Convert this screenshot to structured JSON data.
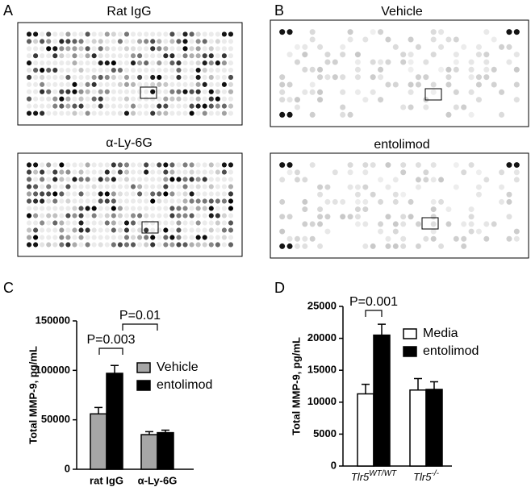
{
  "panels": {
    "A": {
      "label": "A",
      "titles": [
        "Rat IgG",
        "α-Ly-6G"
      ]
    },
    "B": {
      "label": "B",
      "titles": [
        "Vehicle",
        "entolimod"
      ]
    }
  },
  "chart_data": [
    {
      "type": "bar",
      "panel_label": "C",
      "ylabel": "Total MMP-9, pg/mL",
      "categories": [
        "rat IgG",
        "α-Ly-6G"
      ],
      "series": [
        {
          "name": "Vehicle",
          "color": "#a6a6a6",
          "values": [
            56000,
            35000
          ],
          "errors": [
            6500,
            3000
          ]
        },
        {
          "name": "entolimod",
          "color": "#000000",
          "values": [
            97000,
            37000
          ],
          "errors": [
            8000,
            2500
          ]
        }
      ],
      "ylim": [
        0,
        150000
      ],
      "yticks": [
        0,
        50000,
        100000,
        150000
      ],
      "annotations": [
        "P=0.003",
        "P=0.01"
      ]
    },
    {
      "type": "bar",
      "panel_label": "D",
      "ylabel": "Total MMP-9, pg/mL",
      "categories": [
        "Tlr5",
        "Tlr5"
      ],
      "category_superscripts": [
        "WT/WT",
        "-/-"
      ],
      "series": [
        {
          "name": "Media",
          "color": "#ffffff",
          "values": [
            11300,
            11900
          ],
          "errors": [
            1500,
            1800
          ]
        },
        {
          "name": "entolimod",
          "color": "#000000",
          "values": [
            20500,
            12000
          ],
          "errors": [
            1700,
            1200
          ]
        }
      ],
      "ylim": [
        0,
        25000
      ],
      "yticks": [
        0,
        5000,
        10000,
        15000,
        20000,
        25000
      ],
      "annotations": [
        "P=0.001"
      ]
    }
  ]
}
